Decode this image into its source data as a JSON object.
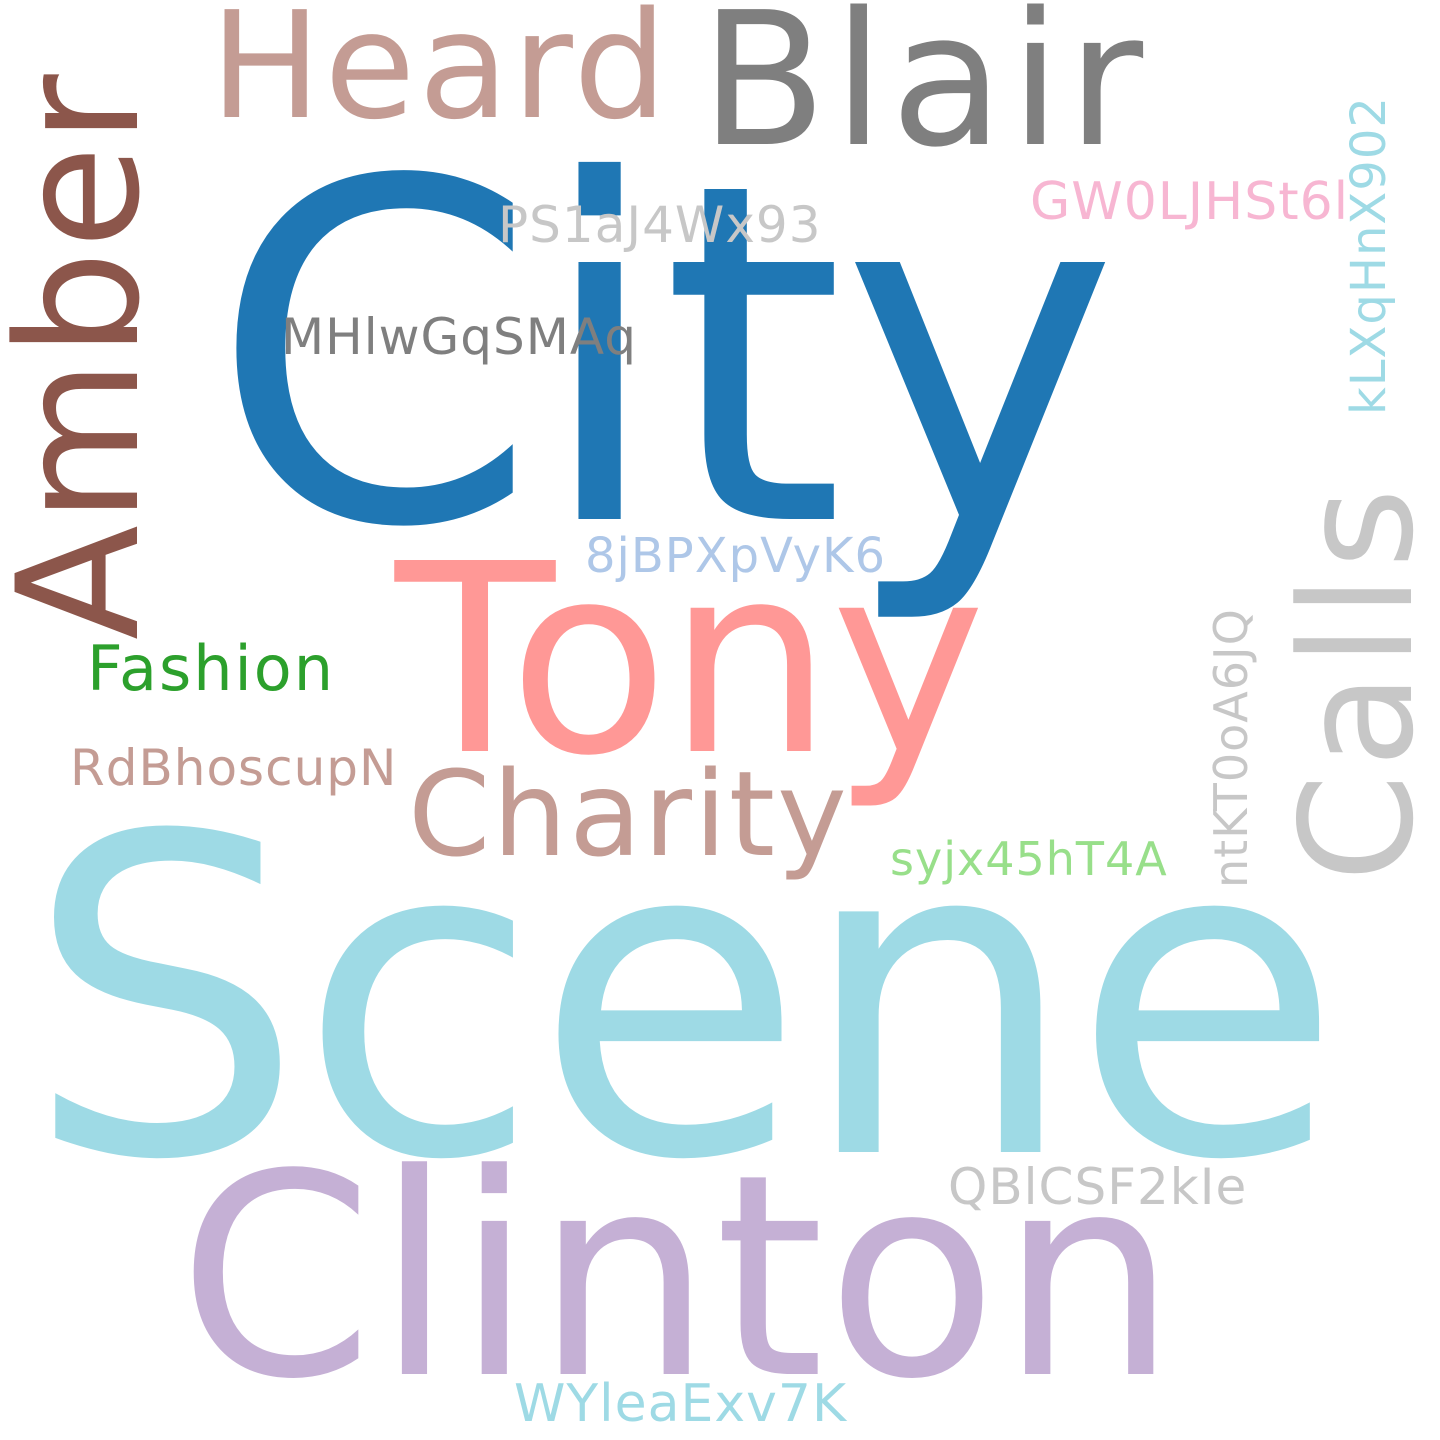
{
  "background": "#ffffff",
  "words": [
    {
      "id": "w-city",
      "text": "City",
      "color": "#1f77b4",
      "orientation": "horizontal"
    },
    {
      "id": "w-scene",
      "text": "Scene",
      "color": "#9edae5",
      "orientation": "horizontal"
    },
    {
      "id": "w-clinton",
      "text": "Clinton",
      "color": "#c5b0d5",
      "orientation": "horizontal"
    },
    {
      "id": "w-tony",
      "text": "Tony",
      "color": "#ff9896",
      "orientation": "horizontal"
    },
    {
      "id": "w-blair",
      "text": "Blair",
      "color": "#7f7f7f",
      "orientation": "horizontal"
    },
    {
      "id": "w-heard",
      "text": "Heard",
      "color": "#c49c94",
      "orientation": "horizontal"
    },
    {
      "id": "w-amber",
      "text": "Amber",
      "color": "#8c564b",
      "orientation": "vertical"
    },
    {
      "id": "w-calls",
      "text": "Calls",
      "color": "#c7c7c7",
      "orientation": "vertical"
    },
    {
      "id": "w-charity",
      "text": "Charity",
      "color": "#c49c94",
      "orientation": "horizontal"
    },
    {
      "id": "w-fashion",
      "text": "Fashion",
      "color": "#2ca02c",
      "orientation": "horizontal"
    },
    {
      "id": "w-rdb",
      "text": "RdBhoscupN",
      "color": "#c49c94",
      "orientation": "horizontal"
    },
    {
      "id": "w-mhl",
      "text": "MHlwGqSMAq",
      "color": "#7f7f7f",
      "orientation": "horizontal"
    },
    {
      "id": "w-ps1",
      "text": "PS1aJ4Wx93",
      "color": "#c7c7c7",
      "orientation": "horizontal"
    },
    {
      "id": "w-8jb",
      "text": "8jBPXpVyK6",
      "color": "#aec7e8",
      "orientation": "horizontal"
    },
    {
      "id": "w-syj",
      "text": "syjx45hT4A",
      "color": "#98df8a",
      "orientation": "horizontal"
    },
    {
      "id": "w-gw0",
      "text": "GW0LJHSt6l",
      "color": "#f7b6d2",
      "orientation": "horizontal"
    },
    {
      "id": "w-klx",
      "text": "kLXqHnX902",
      "color": "#9edae5",
      "orientation": "vertical"
    },
    {
      "id": "w-ntk",
      "text": "ntKT0oA6JQ",
      "color": "#c7c7c7",
      "orientation": "vertical"
    },
    {
      "id": "w-qbl",
      "text": "QBlCSF2kIe",
      "color": "#c7c7c7",
      "orientation": "horizontal"
    },
    {
      "id": "w-wyl",
      "text": "WYleaExv7K",
      "color": "#9edae5",
      "orientation": "horizontal"
    }
  ]
}
